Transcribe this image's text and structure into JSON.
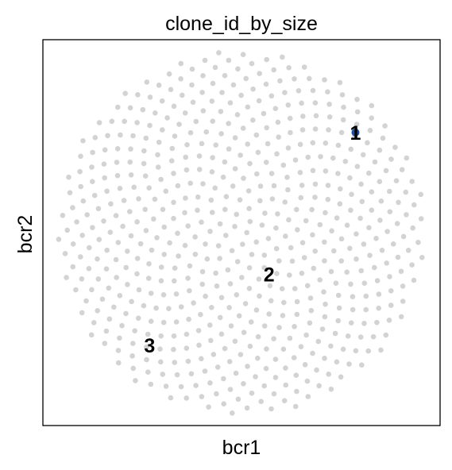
{
  "chart_data": {
    "type": "scatter",
    "title": "clone_id_by_size",
    "xlabel": "bcr1",
    "ylabel": "bcr2",
    "grid": false,
    "xticks": false,
    "yticks": false,
    "xlim": [
      -1.08,
      1.08
    ],
    "ylim": [
      -1.06,
      1.06
    ],
    "background_points": {
      "count": 600,
      "layout": "sunflower disc",
      "center": [
        0,
        0
      ],
      "radius": 1.0,
      "color": "#d3d3d3"
    },
    "highlighted": [
      {
        "clone": "1",
        "x": 0.62,
        "y": 0.55,
        "color": "#1f4e9c"
      }
    ],
    "annotations": [
      {
        "text": "1",
        "x": 0.62,
        "y": 0.55
      },
      {
        "text": "2",
        "x": 0.15,
        "y": -0.23
      },
      {
        "text": "3",
        "x": -0.5,
        "y": -0.62
      }
    ]
  }
}
